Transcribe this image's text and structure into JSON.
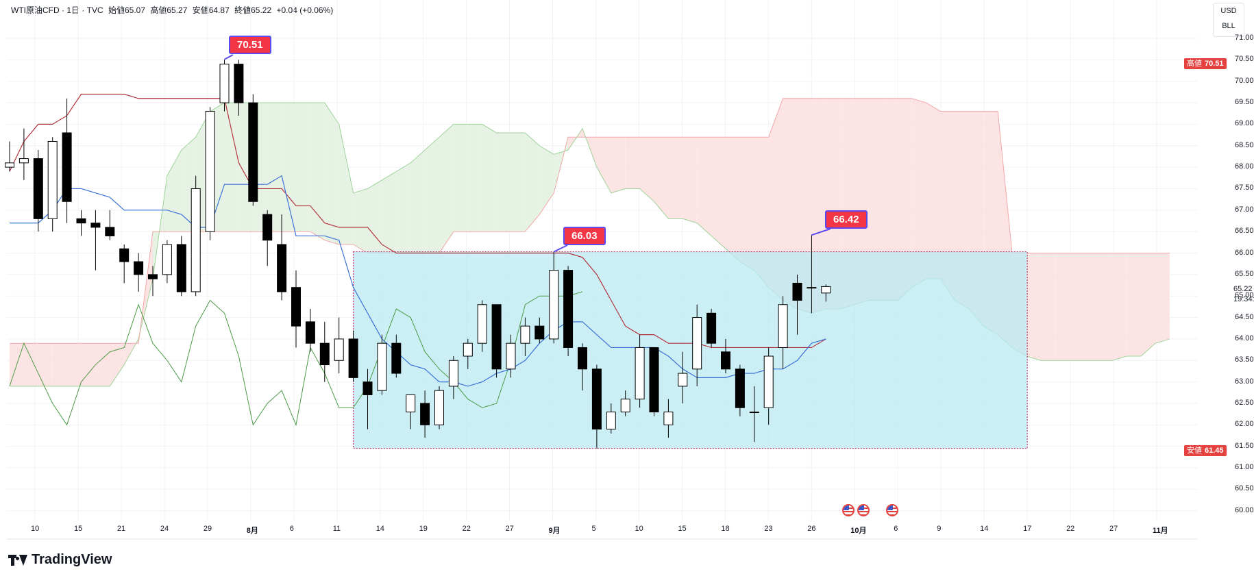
{
  "header": {
    "symbol": "WTI原油CFD · 1日 · TVC",
    "open": "始値65.07",
    "high": "高値65.27",
    "low": "安値64.87",
    "close": "終値65.22",
    "change": "+0.04 (+0.06%)"
  },
  "currency": {
    "unit": "USD",
    "sub": "BLL"
  },
  "axis_tags": {
    "high_label": "高値",
    "high_value": "70.51",
    "low_label": "安値",
    "low_value": "61.45"
  },
  "callouts": [
    "70.51",
    "66.03",
    "66.42"
  ],
  "last_price": "65.22",
  "countdown": "19:34:17",
  "brand": "TradingView",
  "icons": [
    "us-flag-icon",
    "us-flag-icon",
    "us-flag-icon"
  ],
  "colors": {
    "up_body": "#ffffff",
    "down_body": "#000000",
    "conversion_line": "#3a70d6",
    "base_line": "#b2333c",
    "lagging_span": "#4a9a45",
    "cloud_bull": "#e6f3e4",
    "cloud_bear": "#fde4e4",
    "range_box": "#b9eaf2",
    "accent_red": "#f23645",
    "accent_blue": "#5b4bf0"
  },
  "chart_data": {
    "type": "candlestick",
    "indicator": "Ichimoku Kinko Hyo",
    "y_ticks": [
      "60.00",
      "60.50",
      "61.00",
      "61.50",
      "62.00",
      "62.50",
      "63.00",
      "63.50",
      "64.00",
      "64.50",
      "65.00",
      "65.50",
      "66.00",
      "66.50",
      "67.00",
      "67.50",
      "68.00",
      "68.50",
      "69.00",
      "69.50",
      "70.00",
      "70.50",
      "71.00"
    ],
    "ylim": [
      59.9,
      71.0
    ],
    "x_ticks": [
      "10",
      "15",
      "21",
      "24",
      "29",
      "8月",
      "6",
      "11",
      "14",
      "19",
      "22",
      "27",
      "9月",
      "5",
      "10",
      "15",
      "18",
      "23",
      "26",
      "10月",
      "6",
      "9",
      "14",
      "17",
      "22",
      "27",
      "11月"
    ],
    "candles": [
      {
        "o": 68.0,
        "h": 68.6,
        "l": 67.9,
        "c": 68.1
      },
      {
        "o": 68.1,
        "h": 68.9,
        "l": 67.7,
        "c": 68.2
      },
      {
        "o": 68.2,
        "h": 68.4,
        "l": 66.5,
        "c": 66.8
      },
      {
        "o": 66.8,
        "h": 68.7,
        "l": 66.5,
        "c": 68.6
      },
      {
        "o": 68.8,
        "h": 69.6,
        "l": 66.7,
        "c": 67.2
      },
      {
        "o": 66.8,
        "h": 67.0,
        "l": 66.4,
        "c": 66.7
      },
      {
        "o": 66.7,
        "h": 67.0,
        "l": 65.6,
        "c": 66.6
      },
      {
        "o": 66.6,
        "h": 67.0,
        "l": 66.3,
        "c": 66.4
      },
      {
        "o": 66.1,
        "h": 66.2,
        "l": 65.3,
        "c": 65.8
      },
      {
        "o": 65.8,
        "h": 66.0,
        "l": 65.1,
        "c": 65.5
      },
      {
        "o": 65.5,
        "h": 65.7,
        "l": 65.0,
        "c": 65.4
      },
      {
        "o": 65.5,
        "h": 66.3,
        "l": 65.3,
        "c": 66.2
      },
      {
        "o": 66.2,
        "h": 66.4,
        "l": 65.0,
        "c": 65.1
      },
      {
        "o": 65.1,
        "h": 67.8,
        "l": 65.0,
        "c": 67.5
      },
      {
        "o": 66.5,
        "h": 69.4,
        "l": 66.3,
        "c": 69.3
      },
      {
        "o": 69.5,
        "h": 70.5,
        "l": 69.3,
        "c": 70.4
      },
      {
        "o": 70.4,
        "h": 70.5,
        "l": 69.2,
        "c": 69.5
      },
      {
        "o": 69.5,
        "h": 69.7,
        "l": 67.1,
        "c": 67.2
      },
      {
        "o": 66.9,
        "h": 67.0,
        "l": 65.7,
        "c": 66.3
      },
      {
        "o": 66.2,
        "h": 66.9,
        "l": 64.9,
        "c": 65.1
      },
      {
        "o": 65.2,
        "h": 65.6,
        "l": 63.8,
        "c": 64.3
      },
      {
        "o": 64.4,
        "h": 64.7,
        "l": 63.7,
        "c": 63.9
      },
      {
        "o": 63.9,
        "h": 64.4,
        "l": 63.0,
        "c": 63.4
      },
      {
        "o": 63.5,
        "h": 64.5,
        "l": 63.2,
        "c": 64.0
      },
      {
        "o": 64.0,
        "h": 64.2,
        "l": 63.0,
        "c": 63.1
      },
      {
        "o": 63.0,
        "h": 63.3,
        "l": 61.9,
        "c": 62.7
      },
      {
        "o": 62.8,
        "h": 64.1,
        "l": 62.7,
        "c": 63.9
      },
      {
        "o": 63.9,
        "h": 64.1,
        "l": 63.1,
        "c": 63.2
      },
      {
        "o": 62.3,
        "h": 62.7,
        "l": 61.9,
        "c": 62.7
      },
      {
        "o": 62.5,
        "h": 62.8,
        "l": 61.7,
        "c": 62.0
      },
      {
        "o": 62.0,
        "h": 62.9,
        "l": 61.9,
        "c": 62.8
      },
      {
        "o": 62.9,
        "h": 63.6,
        "l": 62.6,
        "c": 63.5
      },
      {
        "o": 63.6,
        "h": 64.0,
        "l": 63.3,
        "c": 63.9
      },
      {
        "o": 63.9,
        "h": 64.9,
        "l": 63.7,
        "c": 64.8
      },
      {
        "o": 64.8,
        "h": 64.8,
        "l": 63.1,
        "c": 63.3
      },
      {
        "o": 63.3,
        "h": 64.1,
        "l": 63.1,
        "c": 63.9
      },
      {
        "o": 63.9,
        "h": 64.5,
        "l": 63.6,
        "c": 64.3
      },
      {
        "o": 64.3,
        "h": 64.5,
        "l": 63.9,
        "c": 64.0
      },
      {
        "o": 64.0,
        "h": 66.03,
        "l": 63.9,
        "c": 65.6
      },
      {
        "o": 65.6,
        "h": 65.7,
        "l": 63.6,
        "c": 63.8
      },
      {
        "o": 63.8,
        "h": 63.9,
        "l": 62.8,
        "c": 63.3
      },
      {
        "o": 63.3,
        "h": 63.4,
        "l": 61.45,
        "c": 61.9
      },
      {
        "o": 61.9,
        "h": 62.5,
        "l": 61.8,
        "c": 62.3
      },
      {
        "o": 62.3,
        "h": 62.8,
        "l": 62.2,
        "c": 62.6
      },
      {
        "o": 62.6,
        "h": 64.1,
        "l": 62.4,
        "c": 63.8
      },
      {
        "o": 63.8,
        "h": 63.8,
        "l": 62.2,
        "c": 62.3
      },
      {
        "o": 62.0,
        "h": 62.6,
        "l": 61.7,
        "c": 62.3
      },
      {
        "o": 62.9,
        "h": 63.7,
        "l": 62.5,
        "c": 63.2
      },
      {
        "o": 63.3,
        "h": 64.8,
        "l": 62.9,
        "c": 64.5
      },
      {
        "o": 64.6,
        "h": 64.7,
        "l": 63.8,
        "c": 63.9
      },
      {
        "o": 63.7,
        "h": 64.0,
        "l": 63.2,
        "c": 63.3
      },
      {
        "o": 63.3,
        "h": 63.4,
        "l": 62.2,
        "c": 62.4
      },
      {
        "o": 62.3,
        "h": 62.9,
        "l": 61.6,
        "c": 62.3
      },
      {
        "o": 62.4,
        "h": 63.8,
        "l": 62.0,
        "c": 63.6
      },
      {
        "o": 63.8,
        "h": 65.0,
        "l": 63.3,
        "c": 64.8
      },
      {
        "o": 65.3,
        "h": 65.5,
        "l": 64.1,
        "c": 64.9
      },
      {
        "o": 65.2,
        "h": 66.42,
        "l": 64.6,
        "c": 65.2
      },
      {
        "o": 65.07,
        "h": 65.27,
        "l": 64.87,
        "c": 65.22
      }
    ],
    "conversion_line": [
      66.7,
      66.7,
      66.7,
      67.0,
      67.5,
      67.5,
      67.4,
      67.3,
      67.0,
      67.0,
      67.0,
      67.0,
      66.9,
      66.6,
      66.6,
      67.6,
      67.6,
      67.6,
      67.6,
      67.8,
      66.4,
      66.4,
      66.4,
      66.3,
      65.2,
      64.6,
      64.0,
      63.7,
      63.4,
      63.3,
      63.0,
      63.0,
      62.9,
      63.0,
      63.2,
      63.3,
      63.5,
      63.9,
      64.2,
      64.4,
      64.4,
      64.1,
      63.8,
      63.8,
      63.8,
      63.8,
      63.6,
      63.3,
      63.1,
      63.1,
      63.1,
      63.2,
      63.2,
      63.3,
      63.3,
      63.5,
      63.9,
      64.0
    ],
    "base_line": [
      67.9,
      68.6,
      69.0,
      69.0,
      69.2,
      69.7,
      69.7,
      69.7,
      69.7,
      69.6,
      69.6,
      69.6,
      69.6,
      69.6,
      69.6,
      69.6,
      68.1,
      67.5,
      67.5,
      67.5,
      67.1,
      67.1,
      66.7,
      66.6,
      66.6,
      66.6,
      66.2,
      66.0,
      66.0,
      66.0,
      66.0,
      66.0,
      66.0,
      66.0,
      66.0,
      66.0,
      66.0,
      66.0,
      66.0,
      66.0,
      65.9,
      65.5,
      64.9,
      64.3,
      64.1,
      64.1,
      63.9,
      63.9,
      63.9,
      63.8,
      63.8,
      63.8,
      63.8,
      63.8,
      63.8,
      63.8,
      63.8,
      64.0
    ],
    "lagging_span": [
      62.9,
      63.9,
      63.2,
      62.5,
      62.0,
      63.0,
      63.4,
      63.7,
      63.8,
      64.8,
      63.9,
      63.5,
      63.0,
      64.3,
      64.9,
      64.6,
      63.6,
      62.0,
      62.5,
      62.8,
      62.0,
      63.8,
      63.2,
      62.4,
      62.4,
      62.9,
      63.8,
      64.7,
      64.5,
      63.7,
      63.3,
      63.0,
      62.6,
      62.4,
      62.5,
      63.5,
      64.8,
      65.0,
      65.0,
      65.0,
      65.1
    ],
    "senkou_a": [
      62.9,
      62.9,
      62.9,
      62.9,
      62.9,
      62.9,
      62.9,
      62.9,
      63.4,
      64.0,
      65.4,
      67.8,
      68.4,
      68.7,
      69.3,
      69.5,
      69.5,
      69.5,
      69.5,
      69.5,
      69.5,
      69.5,
      69.5,
      69.0,
      67.4,
      67.5,
      67.7,
      67.9,
      68.1,
      68.4,
      68.7,
      69.0,
      69.0,
      69.0,
      68.8,
      68.8,
      68.8,
      68.5,
      68.3,
      68.4,
      68.9,
      68.0,
      67.4,
      67.5,
      67.5,
      67.2,
      66.8,
      66.8,
      66.7,
      66.4,
      66.1,
      65.8,
      65.6,
      65.2,
      64.9,
      64.7,
      64.6,
      64.7,
      64.7,
      64.8,
      64.9,
      64.9,
      64.9,
      65.2,
      65.4,
      65.4,
      64.9,
      64.7,
      64.3,
      64.1,
      63.8,
      63.6,
      63.5,
      63.5,
      63.5,
      63.5,
      63.5,
      63.5,
      63.6,
      63.6,
      63.9,
      64.0
    ],
    "senkou_b": [
      63.9,
      63.9,
      63.9,
      63.9,
      63.9,
      63.9,
      63.9,
      63.9,
      63.9,
      63.9,
      66.5,
      66.5,
      66.5,
      66.5,
      66.5,
      66.5,
      66.5,
      66.5,
      66.5,
      66.5,
      66.5,
      66.5,
      66.3,
      66.2,
      66.2,
      66.0,
      66.0,
      66.0,
      66.0,
      66.0,
      66.0,
      66.5,
      66.5,
      66.5,
      66.5,
      66.5,
      66.5,
      66.9,
      67.4,
      68.7,
      68.7,
      68.7,
      68.7,
      68.7,
      68.7,
      68.7,
      68.7,
      68.7,
      68.7,
      68.7,
      68.7,
      68.7,
      68.7,
      68.7,
      69.6,
      69.6,
      69.6,
      69.6,
      69.6,
      69.6,
      69.6,
      69.6,
      69.6,
      69.6,
      69.5,
      69.3,
      69.3,
      69.3,
      69.3,
      69.3,
      66.0,
      66.0,
      66.0,
      66.0,
      66.0,
      66.0,
      66.0,
      66.0,
      66.0,
      66.0,
      66.0,
      66.0
    ],
    "range_box": {
      "x_start": "2025-08-18",
      "x_end": "2025-10-17",
      "y_low": 61.45,
      "y_high": 66.03
    }
  }
}
